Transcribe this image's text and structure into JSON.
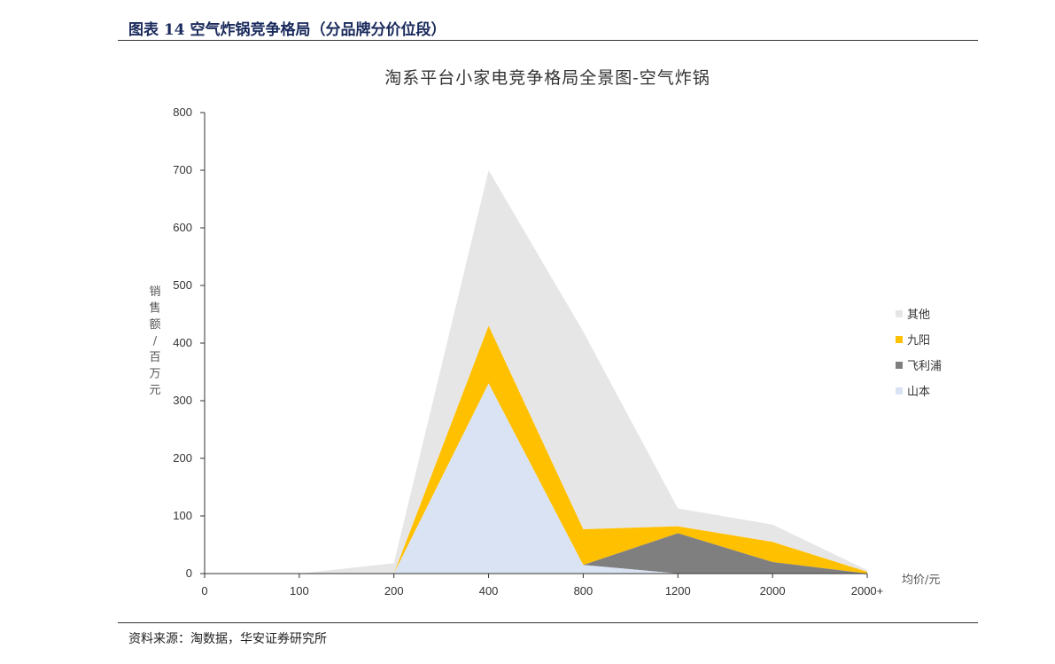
{
  "header": {
    "figure_title": "图表 14 空气炸锅竞争格局（分品牌分价位段）"
  },
  "footer": {
    "source": "资料来源：淘数据，华安证券研究所"
  },
  "chart_data": {
    "type": "area",
    "stacked": true,
    "title": "淘系平台小家电竞争格局全景图-空气炸锅",
    "xlabel": "均价/元",
    "ylabel": "销售额/百万元",
    "categories": [
      "0",
      "100",
      "200",
      "400",
      "800",
      "1200",
      "2000",
      "2000+"
    ],
    "ylim": [
      0,
      800
    ],
    "yticks": [
      0,
      100,
      200,
      300,
      400,
      500,
      600,
      700,
      800
    ],
    "legend_position": "right",
    "grid": false,
    "series": [
      {
        "name": "山本",
        "color": "#dae3f3",
        "values": [
          0,
          0,
          0,
          330,
          15,
          0,
          0,
          0
        ]
      },
      {
        "name": "飞利浦",
        "color": "#7f7f7f",
        "values": [
          0,
          0,
          0,
          0,
          0,
          70,
          20,
          0
        ]
      },
      {
        "name": "九阳",
        "color": "#ffc000",
        "values": [
          0,
          0,
          0,
          100,
          62,
          12,
          35,
          3
        ]
      },
      {
        "name": "其他",
        "color": "#e7e6e6",
        "values": [
          0,
          0,
          18,
          270,
          343,
          31,
          30,
          3
        ]
      }
    ]
  }
}
